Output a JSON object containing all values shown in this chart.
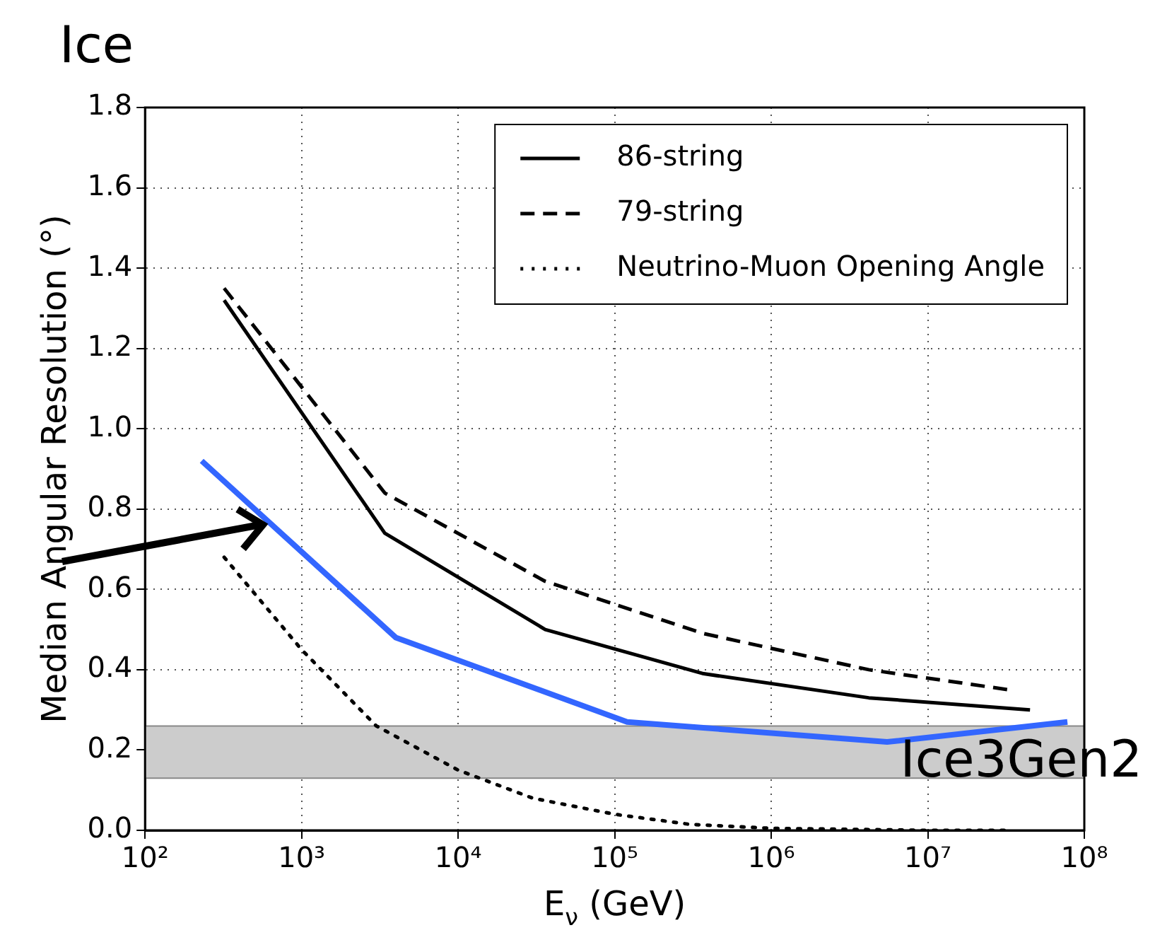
{
  "chart_data": {
    "type": "line",
    "title": "Ice",
    "xlabel": "E$_{ν}$ (GeV)",
    "ylabel": "Median Angular Resolution (°)",
    "log": "x",
    "xlim": [
      100,
      100000000
    ],
    "ylim": [
      0,
      1.8
    ],
    "xticks": [
      {
        "value": 100,
        "label": "10²"
      },
      {
        "value": 1000,
        "label": "10³"
      },
      {
        "value": 10000,
        "label": "10⁴"
      },
      {
        "value": 100000,
        "label": "10⁵"
      },
      {
        "value": 1000000,
        "label": "10⁶"
      },
      {
        "value": 10000000,
        "label": "10⁷"
      },
      {
        "value": 100000000,
        "label": "10⁸"
      }
    ],
    "yticks": [
      {
        "value": 0,
        "label": "0.0"
      },
      {
        "value": 0.2,
        "label": "0.2"
      },
      {
        "value": 0.4,
        "label": "0.4"
      },
      {
        "value": 0.6,
        "label": "0.6"
      },
      {
        "value": 0.8,
        "label": "0.8"
      },
      {
        "value": 1,
        "label": "1.0"
      },
      {
        "value": 1.2,
        "label": "1.2"
      },
      {
        "value": 1.4,
        "label": "1.4"
      },
      {
        "value": 1.6,
        "label": "1.6"
      },
      {
        "value": 1.8,
        "label": "1.8"
      }
    ],
    "grid": true,
    "legend": "top right",
    "marker": "none",
    "series": [
      {
        "name": "86-string",
        "color": "#000000",
        "line_style": "solid",
        "x": [
          320,
          3400,
          36000,
          370000,
          4200000,
          45000000
        ],
        "values": [
          1.32,
          0.74,
          0.5,
          0.39,
          0.33,
          0.3
        ]
      },
      {
        "name": "79-string",
        "color": "#000000",
        "line_style": "dashed",
        "x": [
          320,
          3400,
          36000,
          370000,
          4200000,
          33000000
        ],
        "values": [
          1.35,
          0.84,
          0.62,
          0.49,
          0.4,
          0.35
        ]
      },
      {
        "name": "Neutrino-Muon Opening Angle",
        "color": "#000000",
        "line_style": "dotted",
        "x": [
          320,
          1000,
          3000,
          10000,
          30000,
          100000,
          300000,
          1000000,
          10000000,
          33000000
        ],
        "values": [
          0.68,
          0.45,
          0.26,
          0.15,
          0.08,
          0.04,
          0.015,
          0.005,
          0,
          0
        ]
      },
      {
        "color": "#3366ff",
        "line_style": "solid",
        "x": [
          230,
          4000,
          120000,
          5500000,
          78000000
        ],
        "values": [
          0.92,
          0.48,
          0.27,
          0.22,
          0.27
        ]
      }
    ],
    "bands": [
      {
        "axis": "y",
        "from": 0.13,
        "to": 0.26,
        "label": "Ice3Gen2",
        "color": "#cccccc"
      }
    ]
  }
}
